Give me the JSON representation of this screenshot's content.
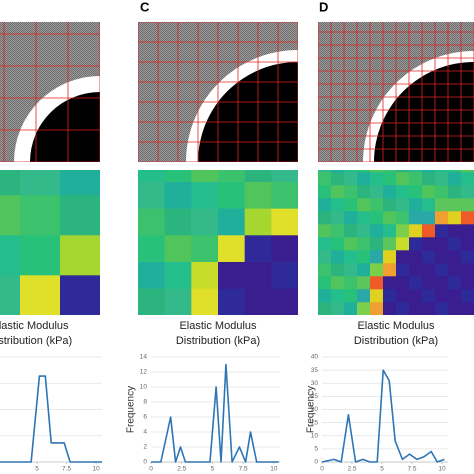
{
  "panels": [
    {
      "caption_lines": [
        "Elastic Modulus",
        "Distribution (kPa)"
      ]
    },
    {
      "label": "C",
      "caption_lines": [
        "Elastic Modulus",
        "Distribution (kPa)"
      ]
    },
    {
      "label": "D",
      "caption_lines": [
        "Elastic Modulus",
        "Distribution (kPa)"
      ]
    }
  ],
  "chart_data": [
    {
      "type": "line",
      "color": "#2e75b6",
      "x": [
        0,
        4.5,
        5.2,
        5.7,
        6.2,
        7.3,
        7.8,
        10.5
      ],
      "values": [
        0,
        0,
        9,
        9,
        2,
        2,
        0,
        0
      ],
      "xlim": [
        0,
        10.5
      ],
      "ylim": [
        0,
        11
      ],
      "xticks": [
        5,
        7.5,
        10
      ],
      "grid": true
    },
    {
      "type": "line",
      "color": "#2e75b6",
      "y_label": "Frequency",
      "x": [
        0,
        0.8,
        1.6,
        2.0,
        2.4,
        2.8,
        4.8,
        5.3,
        5.7,
        6.1,
        6.6,
        7.2,
        7.7,
        8.1,
        8.6,
        10.4
      ],
      "values": [
        0,
        0,
        6,
        0,
        2,
        0,
        0,
        10,
        0,
        13,
        0,
        2,
        0,
        4,
        0,
        0
      ],
      "xlim": [
        0,
        10.5
      ],
      "ylim": [
        0,
        14
      ],
      "xticks": [
        0,
        2.5,
        5,
        7.5,
        10
      ],
      "yticks": [
        0,
        2,
        4,
        6,
        8,
        10,
        12,
        14
      ],
      "grid": true
    },
    {
      "type": "line",
      "color": "#2e75b6",
      "y_label": "Frequency",
      "x": [
        0,
        1,
        1.6,
        2.2,
        2.8,
        3.4,
        4,
        4.6,
        5.1,
        5.6,
        6.1,
        6.7,
        7.3,
        7.9,
        8.5,
        9.1,
        9.6,
        10.2
      ],
      "values": [
        0,
        1,
        0,
        18,
        0,
        1,
        0,
        0,
        35,
        31,
        8,
        1,
        3,
        1,
        2,
        4,
        0,
        1
      ],
      "xlim": [
        0,
        10.5
      ],
      "ylim": [
        0,
        40
      ],
      "xticks": [
        0,
        2.5,
        5,
        7.5,
        10
      ],
      "yticks": [
        0,
        5,
        10,
        15,
        20,
        25,
        30,
        35,
        40
      ],
      "grid": true
    }
  ]
}
